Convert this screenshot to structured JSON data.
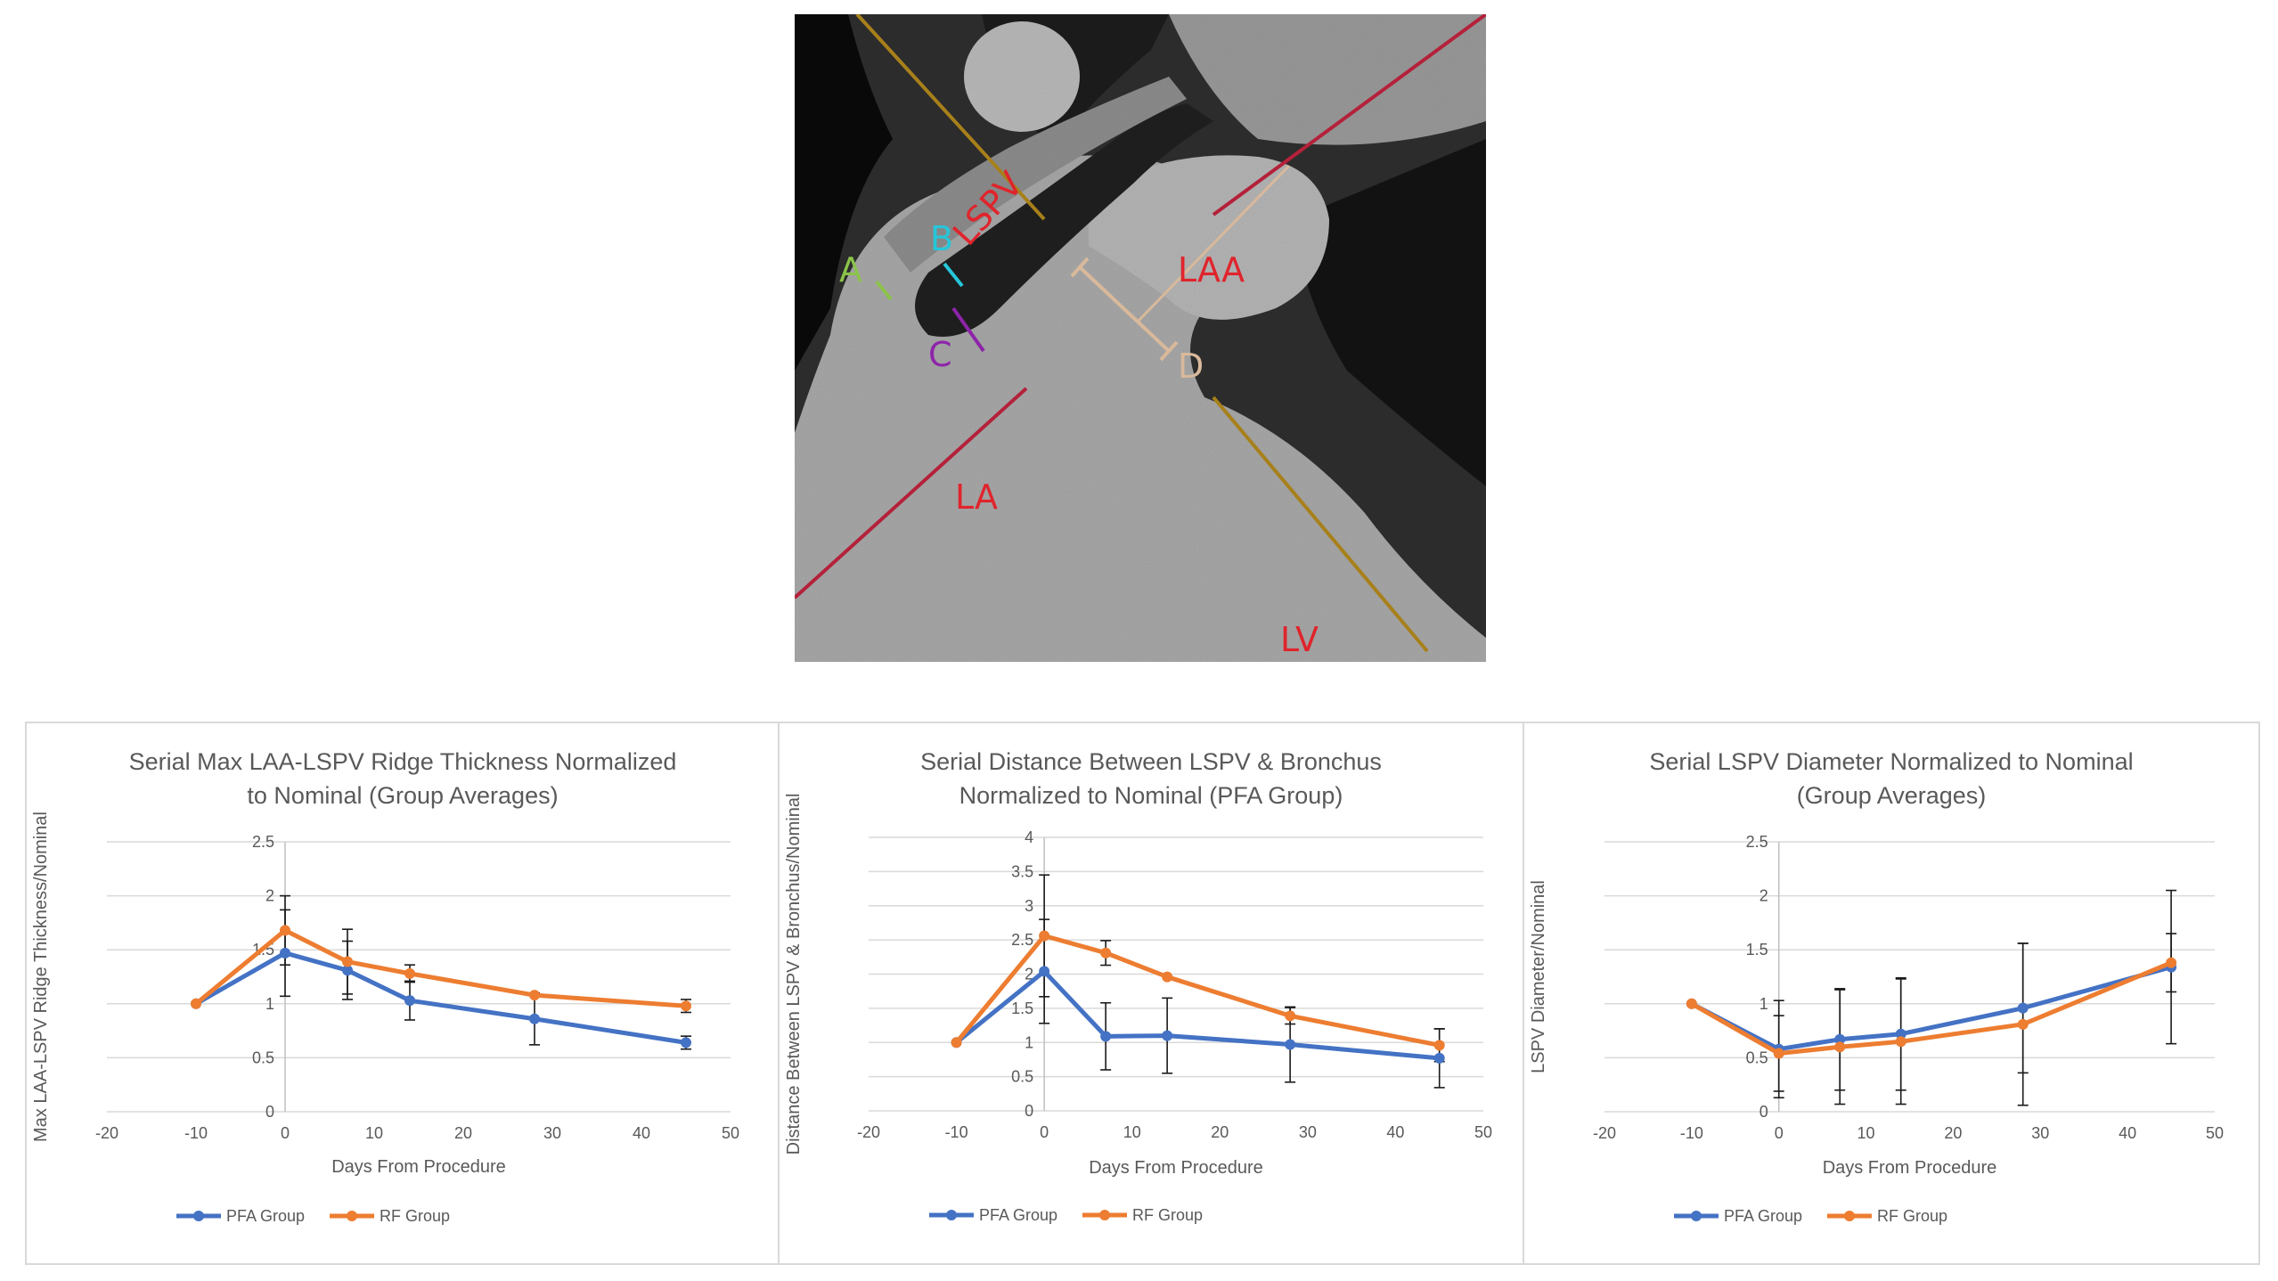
{
  "image": {
    "labels": {
      "lspv": "LSPV",
      "laa": "LAA",
      "la": "LA",
      "lv": "LV",
      "a": "A",
      "b": "B",
      "c": "C",
      "d": "D"
    },
    "colors": {
      "region_label": "#e0242c",
      "a": "#8bc34a",
      "b": "#26c6da",
      "c": "#8e24aa",
      "d": "#d9b99b",
      "plane_gold": "#a8801a",
      "plane_red": "#b4213a"
    }
  },
  "legend": {
    "pfa": "PFA Group",
    "rf": "RF Group"
  },
  "colors": {
    "pfa": "#4472c4",
    "rf": "#ed7d31"
  },
  "chart_data": [
    {
      "type": "line",
      "title_lines": [
        "Serial Max LAA-LSPV Ridge Thickness Normalized",
        "to Nominal (Group Averages)"
      ],
      "xlabel": "Days From Procedure",
      "ylabel": "Max LAA-LSPV Ridge Thickness/Nominal",
      "xlim": [
        -20,
        50
      ],
      "x_ticks": [
        -20,
        -10,
        0,
        10,
        20,
        30,
        40,
        50
      ],
      "x_tick_labels": [
        "-20",
        "-10",
        "0",
        "10",
        "20",
        "30",
        "40",
        "50"
      ],
      "ylim": [
        0,
        2.5
      ],
      "y_ticks": [
        0,
        0.5,
        1,
        1.5,
        2,
        2.5
      ],
      "y_tick_labels": [
        "0",
        "0.5",
        "1",
        "1.5",
        "2",
        "2.5"
      ],
      "grid": true,
      "legend_position": "bottom",
      "series": [
        {
          "name": "PFA Group",
          "x": [
            -10,
            0,
            7,
            14,
            28,
            45
          ],
          "y": [
            1.0,
            1.47,
            1.31,
            1.03,
            0.86,
            0.64
          ],
          "error": [
            0,
            0.4,
            0.27,
            0.18,
            0.24,
            0.06
          ]
        },
        {
          "name": "RF Group",
          "x": [
            -10,
            0,
            7,
            14,
            28,
            45
          ],
          "y": [
            1.0,
            1.68,
            1.39,
            1.28,
            1.08,
            0.98
          ],
          "error": [
            0,
            0.32,
            0.3,
            0.08,
            0,
            0.06
          ]
        }
      ]
    },
    {
      "type": "line",
      "title_lines": [
        "Serial Distance Between LSPV & Bronchus",
        "Normalized to Nominal (PFA Group)"
      ],
      "xlabel": "Days From Procedure",
      "ylabel": "Distance Between LSPV & Bronchus/Nominal",
      "xlim": [
        -20,
        50
      ],
      "x_ticks": [
        -20,
        -10,
        0,
        10,
        20,
        30,
        40,
        50
      ],
      "x_tick_labels": [
        "-20",
        "-10",
        "0",
        "10",
        "20",
        "30",
        "40",
        "50"
      ],
      "ylim": [
        0,
        4
      ],
      "y_ticks": [
        0,
        0.5,
        1,
        1.5,
        2,
        2.5,
        3,
        3.5,
        4
      ],
      "y_tick_labels": [
        "0",
        "0.5",
        "1",
        "1.5",
        "2",
        "2.5",
        "3",
        "3.5",
        "4"
      ],
      "grid": true,
      "legend_position": "bottom",
      "series": [
        {
          "name": "PFA Group",
          "x": [
            -10,
            0,
            7,
            14,
            28,
            45
          ],
          "y": [
            1.0,
            2.04,
            1.09,
            1.1,
            0.97,
            0.77
          ],
          "error": [
            0,
            0.76,
            0.49,
            0.55,
            0.55,
            0.43
          ]
        },
        {
          "name": "RF Group",
          "x": [
            -10,
            0,
            7,
            14,
            28,
            45
          ],
          "y": [
            1.0,
            2.56,
            2.31,
            1.96,
            1.39,
            0.96
          ],
          "error": [
            0,
            0.89,
            0.18,
            0,
            0.12,
            0.24
          ]
        }
      ]
    },
    {
      "type": "line",
      "title_lines": [
        "Serial LSPV Diameter Normalized to Nominal",
        "(Group Averages)"
      ],
      "xlabel": "Days From Procedure",
      "ylabel": "LSPV Diameter/Nominal",
      "xlim": [
        -20,
        50
      ],
      "x_ticks": [
        -20,
        -10,
        0,
        10,
        20,
        30,
        40,
        50
      ],
      "x_tick_labels": [
        "-20",
        "-10",
        "0",
        "10",
        "20",
        "30",
        "40",
        "50"
      ],
      "ylim": [
        0,
        2.5
      ],
      "y_ticks": [
        0,
        0.5,
        1,
        1.5,
        2,
        2.5
      ],
      "y_tick_labels": [
        "0",
        "0.5",
        "1",
        "1.5",
        "2",
        "2.5"
      ],
      "grid": true,
      "legend_position": "bottom",
      "series": [
        {
          "name": "PFA Group",
          "x": [
            -10,
            0,
            7,
            14,
            28,
            45
          ],
          "y": [
            1.0,
            0.58,
            0.67,
            0.72,
            0.96,
            1.34
          ],
          "error": [
            0,
            0.45,
            0.47,
            0.52,
            0.6,
            0.71
          ]
        },
        {
          "name": "RF Group",
          "x": [
            -10,
            0,
            7,
            14,
            28,
            45
          ],
          "y": [
            1.0,
            0.54,
            0.6,
            0.65,
            0.81,
            1.38
          ],
          "error": [
            0,
            0.35,
            0.53,
            0.58,
            0.75,
            0.27
          ]
        }
      ]
    }
  ]
}
